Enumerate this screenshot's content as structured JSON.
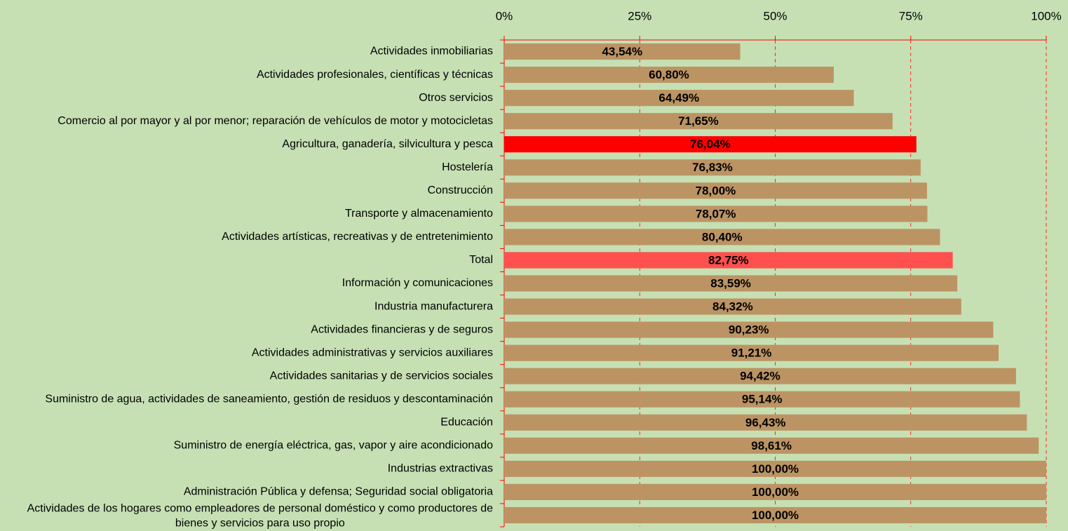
{
  "chart_data": {
    "type": "bar",
    "orientation": "horizontal",
    "categories": [
      "Actividades inmobiliarias",
      "Actividades profesionales, científicas y técnicas",
      "Otros servicios",
      "Comercio al por mayor y al por menor; reparación de vehículos de motor y motocicletas",
      "Agricultura, ganadería, silvicultura y pesca",
      "Hostelería",
      "Construcción",
      "Transporte y almacenamiento",
      "Actividades artísticas, recreativas y de entretenimiento",
      "Total",
      "Información y comunicaciones",
      "Industria manufacturera",
      "Actividades financieras y de seguros",
      "Actividades administrativas y servicios auxiliares",
      "Actividades sanitarias y de servicios sociales",
      "Suministro de agua, actividades de saneamiento, gestión de residuos y descontaminación",
      "Educación",
      "Suministro de energía eléctrica, gas, vapor y aire acondicionado",
      "Industrias extractivas",
      "Administración Pública y defensa; Seguridad social obligatoria",
      "Actividades de los hogares como empleadores de personal doméstico y como productores de bienes y servicios para uso propio"
    ],
    "values": [
      43.54,
      60.8,
      64.49,
      71.65,
      76.04,
      76.83,
      78.0,
      78.07,
      80.4,
      82.75,
      83.59,
      84.32,
      90.23,
      91.21,
      94.42,
      95.14,
      96.43,
      98.61,
      100.0,
      100.0,
      100.0
    ],
    "value_labels": [
      "43,54%",
      "60,80%",
      "64,49%",
      "71,65%",
      "76,04%",
      "76,83%",
      "78,00%",
      "78,07%",
      "80,40%",
      "82,75%",
      "83,59%",
      "84,32%",
      "90,23%",
      "91,21%",
      "94,42%",
      "95,14%",
      "96,43%",
      "98,61%",
      "100,00%",
      "100,00%",
      "100,00%"
    ],
    "colors": [
      "#bc9464",
      "#bc9464",
      "#bc9464",
      "#bc9464",
      "#ff0000",
      "#bc9464",
      "#bc9464",
      "#bc9464",
      "#bc9464",
      "#ff5050",
      "#bc9464",
      "#bc9464",
      "#bc9464",
      "#bc9464",
      "#bc9464",
      "#bc9464",
      "#bc9464",
      "#bc9464",
      "#bc9464",
      "#bc9464",
      "#bc9464"
    ],
    "xlim": [
      0,
      100
    ],
    "xticks": [
      {
        "value": 0,
        "label": "0%"
      },
      {
        "value": 25,
        "label": "25%"
      },
      {
        "value": 50,
        "label": "50%"
      },
      {
        "value": 75,
        "label": "75%"
      },
      {
        "value": 100,
        "label": "100%"
      }
    ],
    "grid": true,
    "axis_color": "#ff0000"
  }
}
